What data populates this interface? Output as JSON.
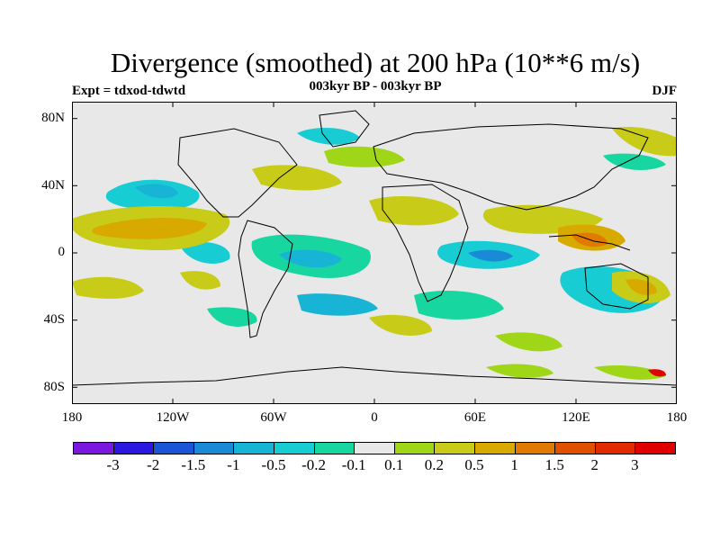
{
  "header": {
    "title": "Divergence (smoothed) at 200 hPa (10**6 m/s)",
    "subtitle": "003kyr BP - 003kyr BP",
    "expt_label": "Expt = tdxod-tdwtd",
    "season_label": "DJF"
  },
  "map": {
    "lat_ticks": [
      "80N",
      "40N",
      "0",
      "40S",
      "80S"
    ],
    "lon_ticks": [
      "180",
      "120W",
      "60W",
      "0",
      "60E",
      "120E",
      "180"
    ],
    "background_color": "#e8e8e8",
    "coastline_color": "#000000"
  },
  "colorbar": {
    "colors": [
      "#7b18e0",
      "#2a18e0",
      "#1a55d8",
      "#1b8ad6",
      "#18b4d6",
      "#18ccd3",
      "#18d6a0",
      "#e8e8e8",
      "#a0d618",
      "#c8cc18",
      "#d8aa00",
      "#e07a00",
      "#e05000",
      "#e02a00",
      "#e00000"
    ],
    "labels": [
      "-3",
      "-2",
      "-1.5",
      "-1",
      "-0.5",
      "-0.2",
      "-0.1",
      "0.1",
      "0.2",
      "0.5",
      "1",
      "1.5",
      "2",
      "3"
    ]
  }
}
